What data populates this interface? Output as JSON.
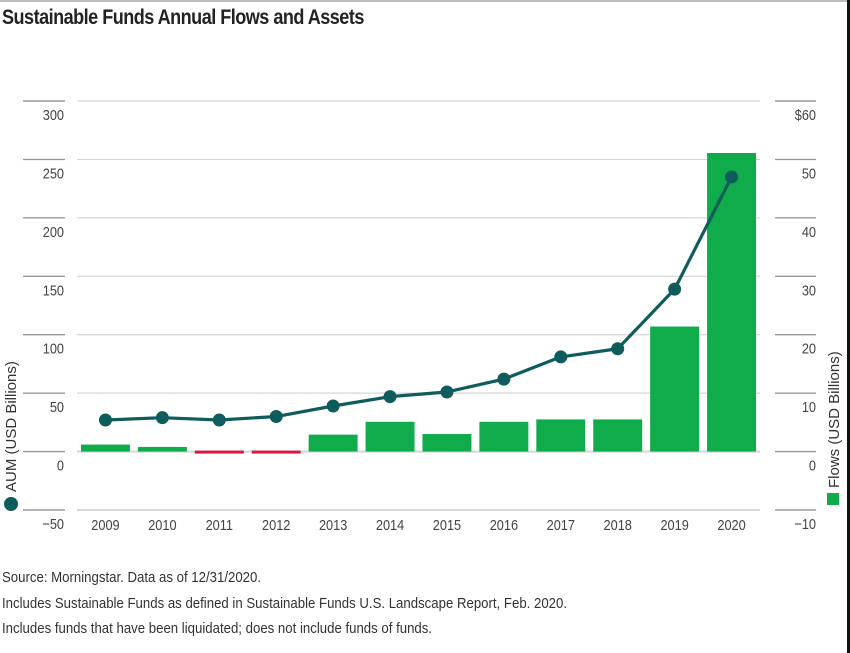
{
  "chart_data": {
    "type": "bar+line",
    "title": "Sustainable Funds Annual Flows and Assets",
    "categories": [
      "2009",
      "2010",
      "2011",
      "2012",
      "2013",
      "2014",
      "2015",
      "2016",
      "2017",
      "2018",
      "2019",
      "2020"
    ],
    "series": [
      {
        "name": "Flows (USD Billions)",
        "kind": "bar",
        "axis": "right",
        "values": [
          1.2,
          0.8,
          -0.5,
          -0.5,
          2.9,
          5.1,
          3.0,
          5.1,
          5.5,
          5.5,
          21.4,
          51.1
        ],
        "color_positive": "#10ab4b",
        "color_negative": "#d8163f"
      },
      {
        "name": "AUM (USD Billions)",
        "kind": "line",
        "axis": "left",
        "values": [
          27,
          29,
          27,
          30,
          39,
          47,
          51,
          62,
          81,
          88,
          139,
          235
        ],
        "color": "#0f5c5c"
      }
    ],
    "left_axis": {
      "label": "AUM (USD Billions)",
      "ylim": [
        -50,
        300
      ],
      "ticks": [
        -50,
        0,
        50,
        100,
        150,
        200,
        250,
        300
      ],
      "tick_labels": [
        "−50",
        "0",
        "50",
        "100",
        "150",
        "200",
        "250",
        "300"
      ]
    },
    "right_axis": {
      "label": "Flows (USD Billions)",
      "ylim": [
        -10,
        60
      ],
      "ticks": [
        -10,
        0,
        10,
        20,
        30,
        40,
        50,
        60
      ],
      "tick_labels": [
        "−10",
        "0",
        "10",
        "20",
        "30",
        "40",
        "50",
        "$60"
      ]
    },
    "grid": true,
    "legend": "axis-titles"
  },
  "footer": {
    "line1": "Source: Morningstar. Data as of 12/31/2020.",
    "line2": "Includes Sustainable Funds as defined in Sustainable Funds U.S. Landscape Report, Feb. 2020.",
    "line3": "Includes funds that have been liquidated; does not include funds of funds."
  },
  "colors": {
    "bar_positive": "#10ab4b",
    "bar_negative": "#d8163f",
    "line": "#0f5c5c",
    "grid": "#d6d6d6"
  }
}
